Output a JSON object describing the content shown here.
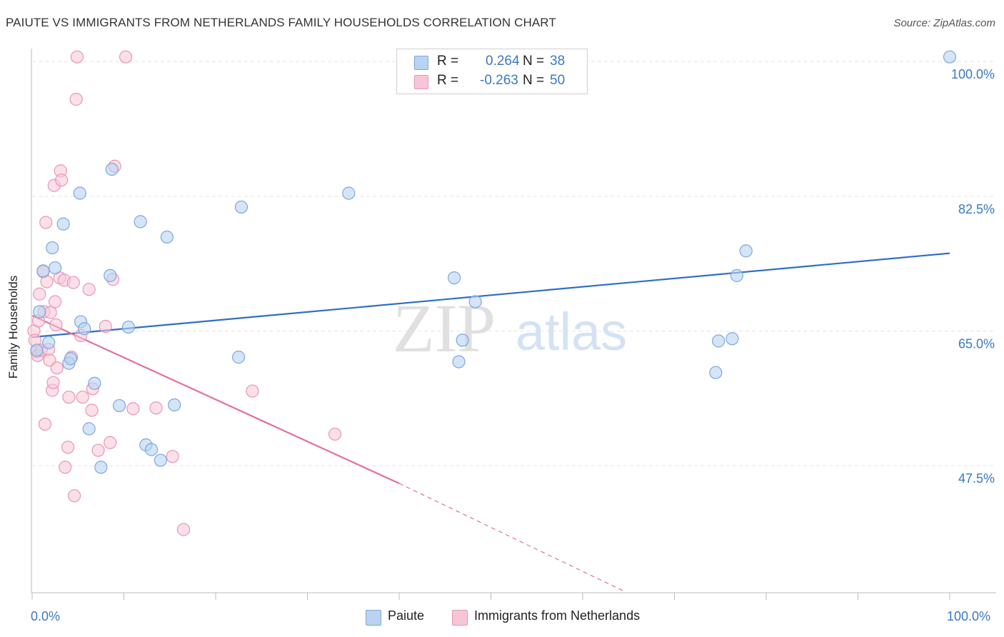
{
  "title": "PAIUTE VS IMMIGRANTS FROM NETHERLANDS FAMILY HOUSEHOLDS CORRELATION CHART",
  "source": "Source: ZipAtlas.com",
  "watermark": {
    "zip": "ZIP",
    "atlas": "atlas"
  },
  "colors": {
    "paiute_fill": "#b9d3f2",
    "paiute_stroke": "#7ba7dd",
    "paiute_line": "#2e6fc7",
    "neth_fill": "#f7c6d6",
    "neth_stroke": "#e896b2",
    "neth_line": "#e46f9b",
    "axis_label": "#3b78c4"
  },
  "stats": {
    "r_label": "R =",
    "n_label": "N =",
    "series1": {
      "r": "0.264",
      "n": "38"
    },
    "series2": {
      "r": "-0.263",
      "n": "50"
    }
  },
  "legend": {
    "series1": "Paiute",
    "series2": "Immigrants from Netherlands"
  },
  "x_labels": {
    "min": "0.0%",
    "max": "100.0%"
  },
  "chart_data": {
    "type": "scatter",
    "title": "PAIUTE VS IMMIGRANTS FROM NETHERLANDS FAMILY HOUSEHOLDS CORRELATION CHART",
    "xlabel": "",
    "ylabel": "Family Households",
    "xlim": [
      0,
      100
    ],
    "ylim": [
      31,
      101.5
    ],
    "y_ticks": [
      47.5,
      65.0,
      82.5,
      100.0
    ],
    "y_tick_labels": [
      "47.5%",
      "65.0%",
      "82.5%",
      "100.0%"
    ],
    "grid": true,
    "legend_position": "bottom-center",
    "series": [
      {
        "name": "Paiute",
        "r": 0.264,
        "n": 38,
        "trend": {
          "x": [
            0,
            100
          ],
          "y": [
            64.2,
            75.1
          ]
        },
        "points": [
          {
            "x": 0.5,
            "y": 62.5
          },
          {
            "x": 0.8,
            "y": 67.5
          },
          {
            "x": 1.2,
            "y": 72.8
          },
          {
            "x": 1.8,
            "y": 63.5
          },
          {
            "x": 2.2,
            "y": 75.8
          },
          {
            "x": 2.5,
            "y": 73.2
          },
          {
            "x": 3.4,
            "y": 78.9
          },
          {
            "x": 4.0,
            "y": 60.8
          },
          {
            "x": 4.2,
            "y": 61.4
          },
          {
            "x": 5.2,
            "y": 82.9
          },
          {
            "x": 5.3,
            "y": 66.2
          },
          {
            "x": 5.7,
            "y": 65.3
          },
          {
            "x": 6.2,
            "y": 52.3
          },
          {
            "x": 6.8,
            "y": 58.2
          },
          {
            "x": 7.5,
            "y": 47.3
          },
          {
            "x": 8.5,
            "y": 72.2
          },
          {
            "x": 8.7,
            "y": 86.0
          },
          {
            "x": 9.5,
            "y": 55.3
          },
          {
            "x": 10.5,
            "y": 65.5
          },
          {
            "x": 11.8,
            "y": 79.2
          },
          {
            "x": 12.4,
            "y": 50.2
          },
          {
            "x": 13.0,
            "y": 49.6
          },
          {
            "x": 14.0,
            "y": 48.2
          },
          {
            "x": 14.7,
            "y": 77.2
          },
          {
            "x": 15.5,
            "y": 55.4
          },
          {
            "x": 22.5,
            "y": 61.6
          },
          {
            "x": 22.8,
            "y": 81.1
          },
          {
            "x": 34.5,
            "y": 82.9
          },
          {
            "x": 46.0,
            "y": 71.9
          },
          {
            "x": 46.5,
            "y": 61.0
          },
          {
            "x": 46.9,
            "y": 63.8
          },
          {
            "x": 48.3,
            "y": 68.8
          },
          {
            "x": 74.5,
            "y": 59.6
          },
          {
            "x": 74.8,
            "y": 63.7
          },
          {
            "x": 76.3,
            "y": 64.0
          },
          {
            "x": 76.8,
            "y": 72.2
          },
          {
            "x": 77.8,
            "y": 75.4
          },
          {
            "x": 100.0,
            "y": 100.6
          }
        ]
      },
      {
        "name": "Immigrants from Netherlands",
        "r": -0.263,
        "n": 50,
        "trend": {
          "x": [
            0,
            40.0
          ],
          "y": [
            67.0,
            45.2
          ]
        },
        "trend_dashed": {
          "x": [
            40.0,
            64.5
          ],
          "y": [
            45.2,
            31.2
          ]
        },
        "points": [
          {
            "x": 0.2,
            "y": 65.0
          },
          {
            "x": 0.3,
            "y": 63.8
          },
          {
            "x": 0.5,
            "y": 62.3
          },
          {
            "x": 0.6,
            "y": 61.8
          },
          {
            "x": 0.7,
            "y": 66.3
          },
          {
            "x": 0.8,
            "y": 69.8
          },
          {
            "x": 1.0,
            "y": 62.5
          },
          {
            "x": 1.2,
            "y": 72.7
          },
          {
            "x": 1.3,
            "y": 67.5
          },
          {
            "x": 1.4,
            "y": 52.9
          },
          {
            "x": 1.5,
            "y": 79.1
          },
          {
            "x": 1.6,
            "y": 71.4
          },
          {
            "x": 1.8,
            "y": 62.6
          },
          {
            "x": 1.9,
            "y": 61.2
          },
          {
            "x": 2.0,
            "y": 67.4
          },
          {
            "x": 2.2,
            "y": 57.3
          },
          {
            "x": 2.3,
            "y": 58.3
          },
          {
            "x": 2.4,
            "y": 83.9
          },
          {
            "x": 2.5,
            "y": 68.8
          },
          {
            "x": 2.6,
            "y": 65.8
          },
          {
            "x": 2.7,
            "y": 60.2
          },
          {
            "x": 3.0,
            "y": 71.9
          },
          {
            "x": 3.1,
            "y": 85.8
          },
          {
            "x": 3.2,
            "y": 84.6
          },
          {
            "x": 3.5,
            "y": 71.6
          },
          {
            "x": 3.6,
            "y": 47.3
          },
          {
            "x": 3.9,
            "y": 49.9
          },
          {
            "x": 4.0,
            "y": 56.4
          },
          {
            "x": 4.3,
            "y": 61.6
          },
          {
            "x": 4.5,
            "y": 71.3
          },
          {
            "x": 4.6,
            "y": 43.6
          },
          {
            "x": 4.8,
            "y": 95.1
          },
          {
            "x": 4.9,
            "y": 100.6
          },
          {
            "x": 5.3,
            "y": 64.4
          },
          {
            "x": 5.5,
            "y": 56.4
          },
          {
            "x": 6.2,
            "y": 70.4
          },
          {
            "x": 6.5,
            "y": 54.7
          },
          {
            "x": 6.6,
            "y": 57.5
          },
          {
            "x": 7.2,
            "y": 49.5
          },
          {
            "x": 8.0,
            "y": 65.6
          },
          {
            "x": 8.5,
            "y": 50.5
          },
          {
            "x": 8.8,
            "y": 71.7
          },
          {
            "x": 9.0,
            "y": 86.4
          },
          {
            "x": 10.2,
            "y": 100.6
          },
          {
            "x": 11.0,
            "y": 54.9
          },
          {
            "x": 13.5,
            "y": 55.0
          },
          {
            "x": 15.3,
            "y": 48.7
          },
          {
            "x": 16.5,
            "y": 39.2
          },
          {
            "x": 24.0,
            "y": 57.2
          },
          {
            "x": 33.0,
            "y": 51.6
          }
        ]
      }
    ]
  }
}
